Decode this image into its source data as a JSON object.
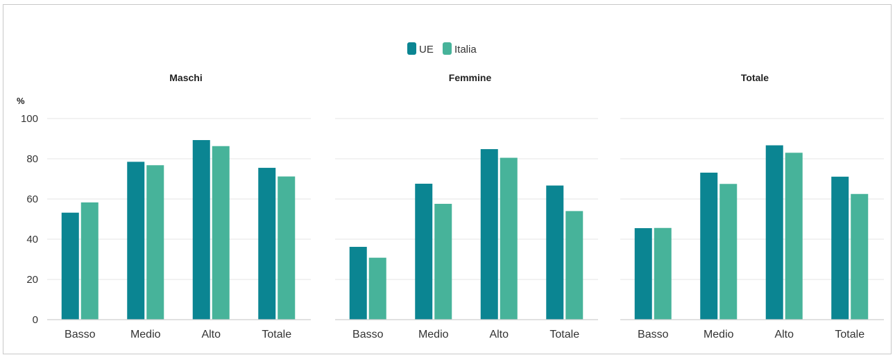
{
  "chart_data": {
    "type": "bar",
    "y_unit": "%",
    "ylim": [
      0,
      100
    ],
    "yticks": [
      0,
      20,
      40,
      60,
      80,
      100
    ],
    "grid": true,
    "legend_position": "top-center",
    "legend": [
      {
        "name": "UE",
        "color": "#0b8592"
      },
      {
        "name": "Italia",
        "color": "#47b39a"
      }
    ],
    "categories": [
      "Basso",
      "Medio",
      "Alto",
      "Totale"
    ],
    "panels": [
      {
        "title": "Maschi",
        "series": [
          {
            "name": "UE",
            "values": [
              53.2,
              78.5,
              89.3,
              75.5
            ]
          },
          {
            "name": "Italia",
            "values": [
              58.3,
              76.8,
              86.3,
              71.2
            ]
          }
        ]
      },
      {
        "title": "Femmine",
        "series": [
          {
            "name": "UE",
            "values": [
              36.2,
              67.6,
              84.8,
              66.7
            ]
          },
          {
            "name": "Italia",
            "values": [
              30.8,
              57.6,
              80.5,
              54.0
            ]
          }
        ]
      },
      {
        "title": "Totale",
        "series": [
          {
            "name": "UE",
            "values": [
              45.5,
              73.1,
              86.7,
              71.1
            ]
          },
          {
            "name": "Italia",
            "values": [
              45.6,
              67.5,
              83.0,
              62.5
            ]
          }
        ]
      }
    ]
  }
}
